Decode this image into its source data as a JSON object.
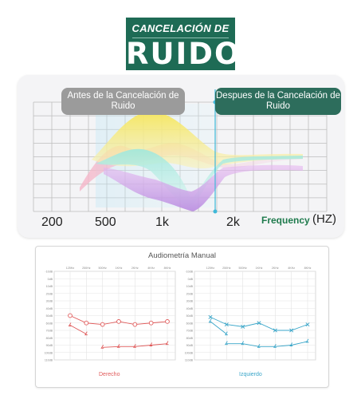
{
  "header": {
    "subtitle": "CANCELACIÓN DE",
    "title": "RUIDO",
    "color": "#1e6b55"
  },
  "eq_chart": {
    "before_label": "Antes de la Cancelación de Ruido",
    "after_label": "Despues de la Cancelación de Ruido",
    "freq_ticks": [
      "200",
      "500",
      "1k",
      "2k"
    ],
    "axis_title": "Frequency",
    "axis_unit": "(HZ)",
    "accent_colors": [
      "#f1e35c",
      "#8ee6d9",
      "#c98ce0",
      "#f5a9c9"
    ]
  },
  "audiometry": {
    "title": "Audiometría Manual",
    "freq_ticks": [
      "125Hz",
      "250Hz",
      "500Hz",
      "1KHz",
      "2KHz",
      "4KHz",
      "8KHz"
    ],
    "db_ticks": [
      "-10dB",
      "0dB",
      "10dB",
      "20dB",
      "30dB",
      "40dB",
      "50dB",
      "60dB",
      "70dB",
      "80dB",
      "90dB",
      "100dB",
      "110dB"
    ],
    "chart_data": [
      {
        "type": "line",
        "title": "Derecho",
        "color": "#e05a5a",
        "x": [
          "125Hz",
          "250Hz",
          "500Hz",
          "1KHz",
          "2KHz",
          "4KHz",
          "8KHz"
        ],
        "series": [
          {
            "marker": "circle",
            "values": [
              50,
              60,
              62,
              58,
              62,
              60,
              58
            ]
          },
          {
            "marker": "bracket",
            "values": [
              63,
              75,
              null,
              null,
              null,
              null,
              null
            ]
          },
          {
            "marker": "bracket",
            "values": [
              null,
              null,
              93,
              92,
              92,
              90,
              88
            ]
          }
        ],
        "ylim": [
          -10,
          110
        ]
      },
      {
        "type": "line",
        "title": "Izquierdo",
        "color": "#3aa6c9",
        "x": [
          "125Hz",
          "250Hz",
          "500Hz",
          "1KHz",
          "2KHz",
          "4KHz",
          "8KHz"
        ],
        "series": [
          {
            "marker": "cross",
            "values": [
              52,
              62,
              65,
              60,
              70,
              70,
              62
            ]
          },
          {
            "marker": "bracket",
            "values": [
              58,
              75,
              null,
              null,
              null,
              null,
              null
            ]
          },
          {
            "marker": "bracket",
            "values": [
              null,
              88,
              88,
              92,
              92,
              90,
              85
            ]
          }
        ],
        "ylim": [
          -10,
          110
        ]
      }
    ]
  }
}
